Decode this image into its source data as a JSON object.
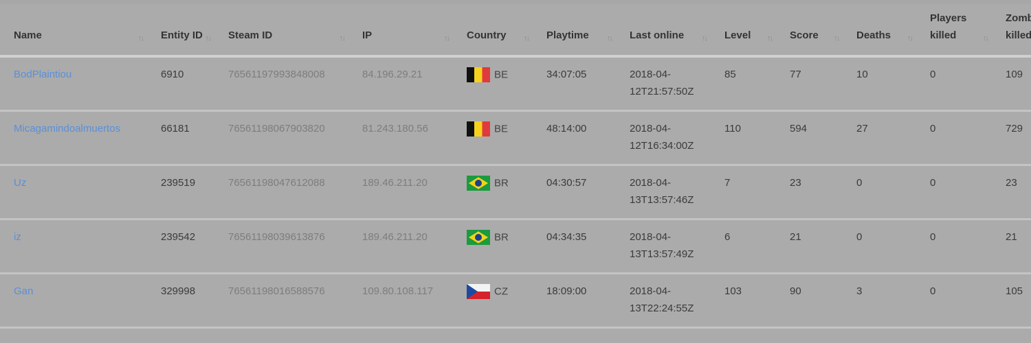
{
  "columns": [
    {
      "key": "name",
      "label": "Name"
    },
    {
      "key": "entity_id",
      "label": "Entity ID"
    },
    {
      "key": "steam_id",
      "label": "Steam ID"
    },
    {
      "key": "ip",
      "label": "IP"
    },
    {
      "key": "country",
      "label": "Country"
    },
    {
      "key": "playtime",
      "label": "Playtime"
    },
    {
      "key": "last_online",
      "label": "Last online"
    },
    {
      "key": "level",
      "label": "Level"
    },
    {
      "key": "score",
      "label": "Score"
    },
    {
      "key": "deaths",
      "label": "Deaths"
    },
    {
      "key": "players_killed",
      "label": "Players killed"
    },
    {
      "key": "zombies_killed",
      "label": "Zombies killed"
    }
  ],
  "sort_icon": "sort-arrows-icon",
  "rows": [
    {
      "name": "BodPlaintiou",
      "entity_id": "6910",
      "steam_id": "76561197993848008",
      "ip": "84.196.29.21",
      "flag": "be",
      "country": "BE",
      "playtime": "34:07:05",
      "last_online": "2018-04-12T21:57:50Z",
      "level": "85",
      "score": "77",
      "deaths": "10",
      "players_killed": "0",
      "zombies_killed": "109"
    },
    {
      "name": "Micagamindoalmuertos",
      "entity_id": "66181",
      "steam_id": "76561198067903820",
      "ip": "81.243.180.56",
      "flag": "be",
      "country": "BE",
      "playtime": "48:14:00",
      "last_online": "2018-04-12T16:34:00Z",
      "level": "110",
      "score": "594",
      "deaths": "27",
      "players_killed": "0",
      "zombies_killed": "729"
    },
    {
      "name": "Uz",
      "entity_id": "239519",
      "steam_id": "76561198047612088",
      "ip": "189.46.211.20",
      "flag": "br",
      "country": "BR",
      "playtime": "04:30:57",
      "last_online": "2018-04-13T13:57:46Z",
      "level": "7",
      "score": "23",
      "deaths": "0",
      "players_killed": "0",
      "zombies_killed": "23"
    },
    {
      "name": "iz",
      "entity_id": "239542",
      "steam_id": "76561198039613876",
      "ip": "189.46.211.20",
      "flag": "br",
      "country": "BR",
      "playtime": "04:34:35",
      "last_online": "2018-04-13T13:57:49Z",
      "level": "6",
      "score": "21",
      "deaths": "0",
      "players_killed": "0",
      "zombies_killed": "21"
    },
    {
      "name": "Gan",
      "entity_id": "329998",
      "steam_id": "76561198016588576",
      "ip": "109.80.108.117",
      "flag": "cz",
      "country": "CZ",
      "playtime": "18:09:00",
      "last_online": "2018-04-13T22:24:55Z",
      "level": "103",
      "score": "90",
      "deaths": "3",
      "players_killed": "0",
      "zombies_killed": "105"
    }
  ]
}
